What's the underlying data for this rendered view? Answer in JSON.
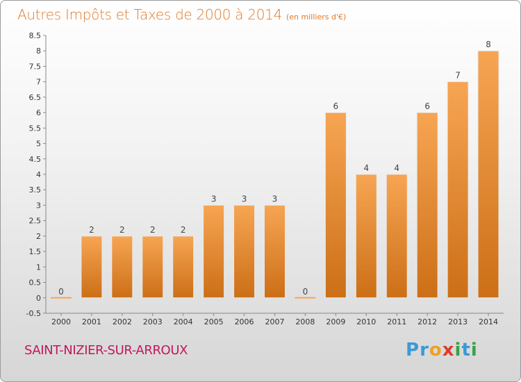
{
  "title": "Autres Impôts et Taxes de 2000 à 2014",
  "subtitle": "(en milliers d'€)",
  "commune": "SAINT-NIZIER-SUR-ARROUX",
  "logo": {
    "text": "Proxiti",
    "letters": [
      {
        "ch": "P",
        "color": "#3a9ad9"
      },
      {
        "ch": "r",
        "color": "#3a9ad9"
      },
      {
        "ch": "o",
        "color": "#f0a020"
      },
      {
        "ch": "x",
        "color": "#e03a2a"
      },
      {
        "ch": "i",
        "color": "#3aa04a"
      },
      {
        "ch": "t",
        "color": "#3a9ad9"
      },
      {
        "ch": "i",
        "color": "#3aa04a"
      }
    ]
  },
  "colors": {
    "title": "#e0792a",
    "commune": "#c2185b",
    "bar_light": "#f7a553",
    "bar_dark": "#cc6f17"
  },
  "chart_data": {
    "type": "bar",
    "categories": [
      "2000",
      "2001",
      "2002",
      "2003",
      "2004",
      "2005",
      "2006",
      "2007",
      "2008",
      "2009",
      "2010",
      "2011",
      "2012",
      "2013",
      "2014"
    ],
    "values": [
      0,
      2,
      2,
      2,
      2,
      3,
      3,
      3,
      0,
      6,
      4,
      4,
      6,
      7,
      8
    ],
    "data_labels": [
      "0",
      "2",
      "2",
      "2",
      "2",
      "3",
      "3",
      "3",
      "0",
      "6",
      "4",
      "4",
      "6",
      "7",
      "8"
    ],
    "title": "Autres Impôts et Taxes de 2000 à 2014",
    "subtitle": "(en milliers d'€)",
    "ylim": [
      -0.5,
      8.5
    ],
    "yticks": [
      "-0.5",
      "0",
      "0.5",
      "1",
      "1.5",
      "2",
      "2.5",
      "3",
      "3.5",
      "4",
      "4.5",
      "5",
      "5.5",
      "6",
      "6.5",
      "7",
      "7.5",
      "8",
      "8.5"
    ],
    "grid": false
  }
}
